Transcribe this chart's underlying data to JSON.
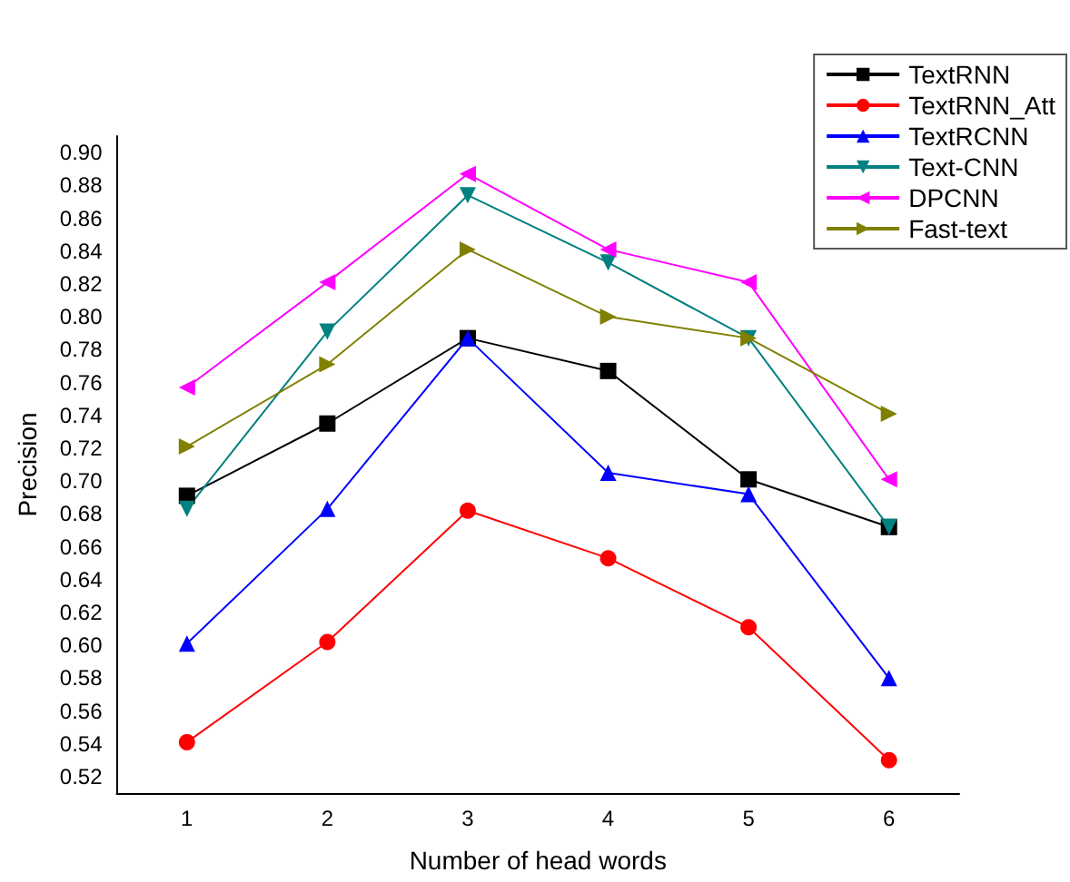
{
  "chart_data": {
    "type": "line",
    "xlabel": "Number of head words",
    "ylabel": "Precision",
    "categories": [
      "1",
      "2",
      "3",
      "4",
      "5",
      "6"
    ],
    "series": [
      {
        "name": "TextRNN",
        "color": "#000000",
        "marker": "square",
        "values": [
          0.691,
          0.735,
          0.787,
          0.767,
          0.701,
          0.672
        ]
      },
      {
        "name": "TextRNN_Att",
        "color": "#ff0000",
        "marker": "circle",
        "values": [
          0.541,
          0.602,
          0.682,
          0.653,
          0.611,
          0.53
        ]
      },
      {
        "name": "TextRCNN",
        "color": "#0000ff",
        "marker": "triangle",
        "values": [
          0.601,
          0.683,
          0.787,
          0.705,
          0.692,
          0.58
        ]
      },
      {
        "name": "Text-CNN",
        "color": "#008080",
        "marker": "triangle-down",
        "values": [
          0.683,
          0.791,
          0.874,
          0.833,
          0.787,
          0.672
        ]
      },
      {
        "name": "DPCNN",
        "color": "#ff00ff",
        "marker": "triangle-left",
        "values": [
          0.757,
          0.821,
          0.887,
          0.841,
          0.821,
          0.701
        ]
      },
      {
        "name": "Fast-text",
        "color": "#808000",
        "marker": "triangle-right",
        "values": [
          0.721,
          0.771,
          0.841,
          0.8,
          0.787,
          0.741
        ]
      }
    ],
    "ylim": [
      0.51,
      0.91
    ],
    "yticks": [
      0.52,
      0.54,
      0.56,
      0.58,
      {
        "value": 0.6,
        "label": "0.60"
      },
      0.62,
      0.64,
      0.66,
      0.68,
      {
        "value": 0.7,
        "label": "0.70"
      },
      0.72,
      0.74,
      0.76,
      0.78,
      {
        "value": 0.8,
        "label": "0.80"
      },
      0.82,
      0.84,
      0.86,
      0.88,
      {
        "value": 0.9,
        "label": "0.90"
      }
    ],
    "grid": false,
    "legend": "top right"
  }
}
